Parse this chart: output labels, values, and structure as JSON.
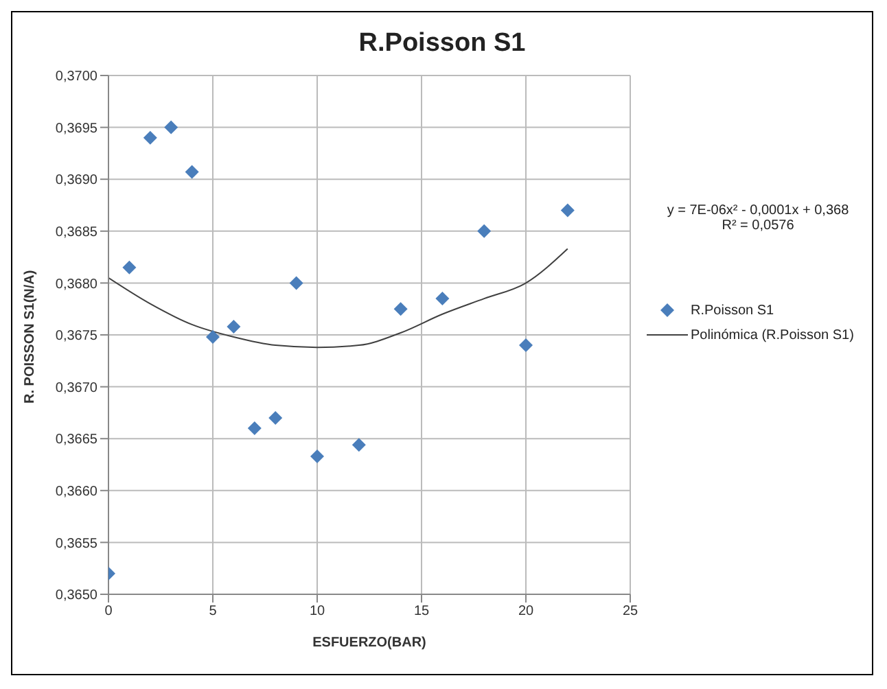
{
  "chart_data": {
    "type": "scatter",
    "title": "R.Poisson S1",
    "xlabel": "ESFUERZO(BAR)",
    "ylabel": "R. POISSON S1(N/A)",
    "annotations": [
      "y = 7E-06x² - 0,0001x + 0,368",
      "R² = 0,0576"
    ],
    "xlim": [
      0,
      25
    ],
    "xticks": [
      0,
      5,
      10,
      15,
      20,
      25
    ],
    "ylim": [
      0.365,
      0.37
    ],
    "yticks": [
      {
        "value": 0.365,
        "label": "0,3650"
      },
      {
        "value": 0.3655,
        "label": "0,3655"
      },
      {
        "value": 0.366,
        "label": "0,3660"
      },
      {
        "value": 0.3665,
        "label": "0,3665"
      },
      {
        "value": 0.367,
        "label": "0,3670"
      },
      {
        "value": 0.3675,
        "label": "0,3675"
      },
      {
        "value": 0.368,
        "label": "0,3680"
      },
      {
        "value": 0.3685,
        "label": "0,3685"
      },
      {
        "value": 0.369,
        "label": "0,3690"
      },
      {
        "value": 0.3695,
        "label": "0,3695"
      },
      {
        "value": 0.37,
        "label": "0,3700"
      }
    ],
    "grid": true,
    "legend": "right",
    "series": [
      {
        "name": "R.Poisson S1",
        "marker": "diamond",
        "color": "#4a7ebb",
        "x": [
          0,
          1,
          2,
          3,
          4,
          5,
          6,
          7,
          8,
          9,
          10,
          12,
          14,
          16,
          18,
          20,
          22
        ],
        "values": [
          0.3652,
          0.36815,
          0.3694,
          0.3695,
          0.36907,
          0.36748,
          0.36758,
          0.3666,
          0.3667,
          0.368,
          0.36633,
          0.36644,
          0.36775,
          0.36785,
          0.3685,
          0.3674,
          0.3687
        ]
      },
      {
        "name": "Polinómica (R.Poisson S1)",
        "type": "line",
        "marker": "none",
        "line_style": "solid",
        "color": "#404040",
        "x": [
          0,
          2,
          4,
          6,
          8,
          10,
          12,
          14,
          16,
          18,
          20,
          22
        ],
        "values": [
          0.36805,
          0.3678,
          0.3676,
          0.36748,
          0.3674,
          0.36738,
          0.3674,
          0.36752,
          0.3677,
          0.36785,
          0.368,
          0.36833
        ]
      }
    ]
  }
}
